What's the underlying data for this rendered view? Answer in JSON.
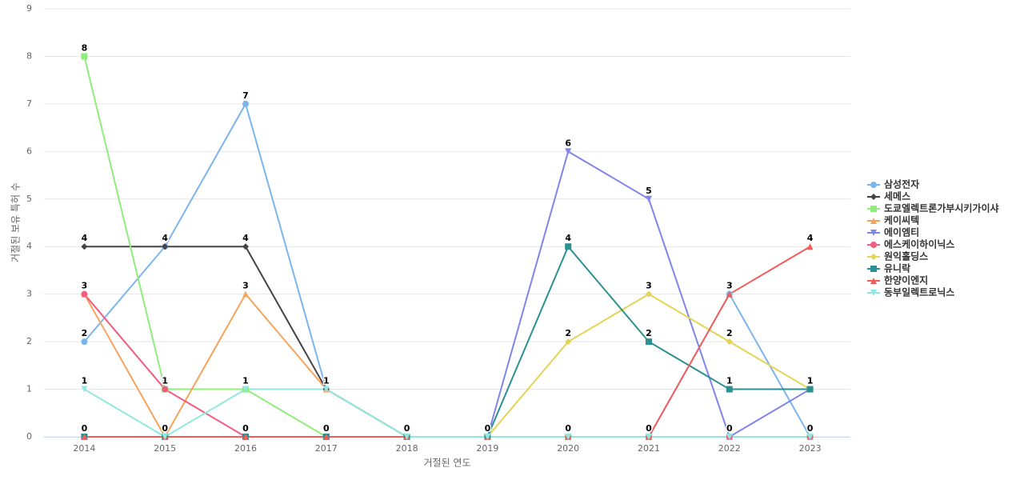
{
  "chart_data": {
    "type": "line",
    "x_label": "거절된 연도",
    "y_label": "거절된 보유 특허 수",
    "categories": [
      "2014",
      "2015",
      "2016",
      "2017",
      "2018",
      "2019",
      "2020",
      "2021",
      "2022",
      "2023"
    ],
    "ylim": [
      0,
      9
    ],
    "yticks": [
      0,
      1,
      2,
      3,
      4,
      5,
      6,
      7,
      8,
      9
    ],
    "grid": true,
    "legend": "right",
    "series": [
      {
        "name": "삼성전자",
        "color": "#7cb5ec",
        "marker": "circle",
        "values": [
          2,
          4,
          7,
          1,
          0,
          0,
          0,
          0,
          3,
          0
        ]
      },
      {
        "name": "세메스",
        "color": "#434348",
        "marker": "diamond",
        "values": [
          4,
          4,
          4,
          1,
          0,
          0,
          0,
          0,
          0,
          0
        ]
      },
      {
        "name": "도쿄엘렉트론가부시키가이샤",
        "color": "#90ed7d",
        "marker": "square",
        "values": [
          8,
          1,
          1,
          0,
          0,
          0,
          0,
          0,
          0,
          0
        ]
      },
      {
        "name": "케이씨텍",
        "color": "#f7a35c",
        "marker": "triangle",
        "values": [
          3,
          0,
          3,
          1,
          0,
          0,
          0,
          0,
          0,
          0
        ]
      },
      {
        "name": "에이엠티",
        "color": "#8085e9",
        "marker": "triangle-down",
        "values": [
          0,
          0,
          0,
          0,
          0,
          0,
          6,
          5,
          0,
          1
        ]
      },
      {
        "name": "에스케이하이닉스",
        "color": "#f15c80",
        "marker": "circle",
        "values": [
          3,
          1,
          0,
          0,
          0,
          0,
          0,
          0,
          0,
          0
        ]
      },
      {
        "name": "원익홀딩스",
        "color": "#e4d354",
        "marker": "diamond",
        "values": [
          0,
          0,
          0,
          0,
          0,
          0,
          2,
          3,
          2,
          1
        ]
      },
      {
        "name": "유니락",
        "color": "#2b908f",
        "marker": "square",
        "values": [
          0,
          0,
          0,
          0,
          0,
          0,
          4,
          2,
          1,
          1
        ]
      },
      {
        "name": "한양이엔지",
        "color": "#f45b5b",
        "marker": "triangle",
        "values": [
          0,
          0,
          0,
          0,
          0,
          0,
          0,
          0,
          3,
          4
        ]
      },
      {
        "name": "동부일렉트로닉스",
        "color": "#91e8e1",
        "marker": "triangle-down",
        "values": [
          1,
          0,
          1,
          1,
          0,
          0,
          0,
          0,
          0,
          0
        ]
      }
    ]
  }
}
